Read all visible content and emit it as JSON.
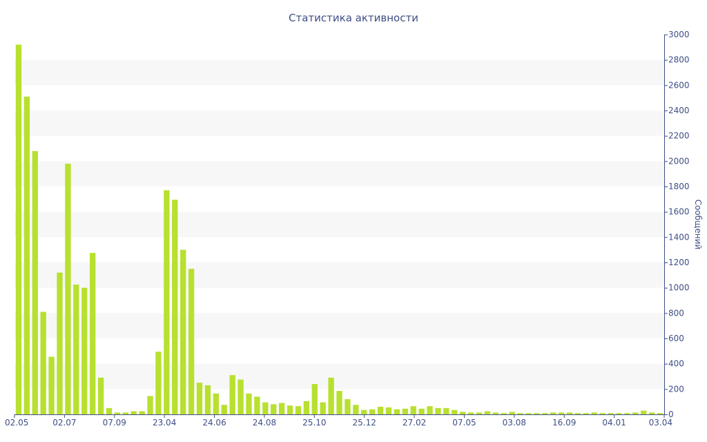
{
  "chart_data": {
    "type": "bar",
    "title": "Статистика активности",
    "xlabel": "",
    "ylabel": "Сообщений",
    "ylim": [
      0,
      3000
    ],
    "yticks": [
      0,
      200,
      400,
      600,
      800,
      1000,
      1200,
      1400,
      1600,
      1800,
      2000,
      2200,
      2400,
      2600,
      2800,
      3000
    ],
    "x_tick_labels": [
      "02.05",
      "02.07",
      "07.09",
      "23.04",
      "24.06",
      "24.08",
      "25.10",
      "25.12",
      "27.02",
      "07.05",
      "03.08",
      "16.09",
      "04.01",
      "03.04"
    ],
    "grid": "horizontal alternating bands",
    "y_axis_position": "right",
    "bar_color": "#b8e030",
    "values": [
      2920,
      2510,
      2080,
      810,
      455,
      1120,
      1980,
      1025,
      1000,
      1275,
      290,
      50,
      15,
      15,
      25,
      25,
      145,
      495,
      1770,
      1695,
      1300,
      1150,
      250,
      230,
      165,
      75,
      310,
      275,
      165,
      140,
      95,
      80,
      90,
      70,
      65,
      105,
      240,
      95,
      290,
      185,
      120,
      75,
      35,
      40,
      60,
      55,
      40,
      45,
      65,
      45,
      65,
      50,
      50,
      35,
      20,
      15,
      15,
      25,
      15,
      10,
      20,
      10,
      10,
      10,
      10,
      15,
      15,
      15,
      10,
      10,
      15,
      10,
      10,
      10,
      10,
      15,
      30,
      15,
      10
    ]
  }
}
